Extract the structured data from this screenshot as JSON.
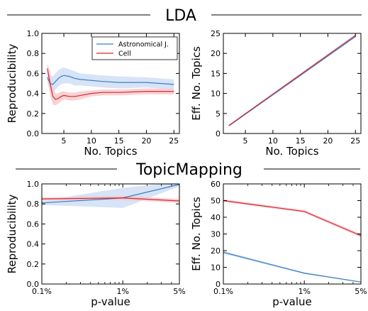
{
  "sections": [
    {
      "title": "LDA"
    },
    {
      "title": "TopicMapping"
    }
  ],
  "colors": {
    "blue": "#3a7fc1",
    "red": "#d62738",
    "blue_band": "#c9daf3",
    "red_band": "#f7c4c4"
  },
  "chart_data": [
    {
      "type": "line",
      "xlabel": "No. Topics",
      "ylabel": "Reproducibility",
      "xlim": [
        1,
        26
      ],
      "ylim": [
        0,
        1
      ],
      "xticks": [
        5,
        10,
        15,
        20,
        25
      ],
      "xtick_labels": [
        "5",
        "10",
        "15",
        "20",
        "25"
      ],
      "yticks": [
        0,
        0.2,
        0.4,
        0.6,
        0.8,
        1.0
      ],
      "ytick_labels": [
        "0.0",
        "0.2",
        "0.4",
        "0.6",
        "0.8",
        "1.0"
      ],
      "legend": "top-right",
      "series": [
        {
          "name": "Astronomical J.",
          "color": "blue",
          "x": [
            2,
            2.5,
            3,
            3.5,
            4,
            4.5,
            5,
            6,
            7,
            8,
            10,
            12,
            15,
            20,
            25
          ],
          "y": [
            0.56,
            0.5,
            0.49,
            0.52,
            0.55,
            0.57,
            0.58,
            0.57,
            0.55,
            0.54,
            0.53,
            0.52,
            0.51,
            0.51,
            0.49
          ],
          "band": [
            0.05,
            0.08,
            0.08,
            0.08,
            0.08,
            0.08,
            0.08,
            0.07,
            0.07,
            0.06,
            0.06,
            0.06,
            0.06,
            0.05,
            0.05
          ]
        },
        {
          "name": "Cell",
          "color": "red",
          "x": [
            2,
            2.5,
            3,
            3.5,
            4,
            4.5,
            5,
            6,
            7,
            8,
            10,
            12,
            15,
            20,
            25
          ],
          "y": [
            0.65,
            0.5,
            0.37,
            0.34,
            0.35,
            0.37,
            0.38,
            0.37,
            0.37,
            0.38,
            0.4,
            0.41,
            0.41,
            0.42,
            0.42
          ],
          "band": [
            0.05,
            0.12,
            0.08,
            0.06,
            0.05,
            0.05,
            0.04,
            0.04,
            0.04,
            0.04,
            0.03,
            0.03,
            0.03,
            0.03,
            0.03
          ]
        }
      ]
    },
    {
      "type": "line",
      "xlabel": "No. Topics",
      "ylabel": "Eff. No. Topics",
      "xlim": [
        1,
        26
      ],
      "ylim": [
        0,
        25
      ],
      "xticks": [
        5,
        10,
        15,
        20,
        25
      ],
      "xtick_labels": [
        "5",
        "10",
        "15",
        "20",
        "25"
      ],
      "yticks": [
        0,
        5,
        10,
        15,
        20,
        25
      ],
      "ytick_labels": [
        "0",
        "5",
        "10",
        "15",
        "20",
        "25"
      ],
      "series": [
        {
          "name": "Astronomical J.",
          "color": "blue",
          "x": [
            2,
            25
          ],
          "y": [
            1.9,
            24.2
          ],
          "band": [
            0.2,
            0.2
          ]
        },
        {
          "name": "Cell",
          "color": "red",
          "x": [
            2,
            25
          ],
          "y": [
            2.0,
            24.5
          ],
          "band": [
            0.2,
            0.2
          ]
        }
      ]
    },
    {
      "type": "line",
      "xscale": "log",
      "xlabel": "p-value",
      "ylabel": "Reproducibility",
      "xlim": [
        0.1,
        5
      ],
      "ylim": [
        0,
        1
      ],
      "xticks": [
        0.1,
        1,
        5
      ],
      "xtick_labels": [
        "0.1%",
        "1%",
        "5%"
      ],
      "yticks": [
        0,
        0.2,
        0.4,
        0.6,
        0.8,
        1.0
      ],
      "ytick_labels": [
        "0.0",
        "0.2",
        "0.4",
        "0.6",
        "0.8",
        "1.0"
      ],
      "series": [
        {
          "name": "Astronomical J.",
          "color": "blue",
          "x": [
            0.1,
            1,
            5
          ],
          "y": [
            0.81,
            0.86,
            0.995
          ],
          "band": [
            0.02,
            0.1,
            0.02
          ]
        },
        {
          "name": "Cell",
          "color": "red",
          "x": [
            0.1,
            1,
            5
          ],
          "y": [
            0.85,
            0.86,
            0.83
          ],
          "band": [
            0.015,
            0.02,
            0.02
          ]
        }
      ]
    },
    {
      "type": "line",
      "xscale": "log",
      "xlabel": "p-value",
      "ylabel": "Eff. No. Topics",
      "xlim": [
        0.1,
        5
      ],
      "ylim": [
        0,
        60
      ],
      "xticks": [
        0.1,
        1,
        5
      ],
      "xtick_labels": [
        "0.1%",
        "1%",
        "5%"
      ],
      "yticks": [
        0,
        10,
        20,
        30,
        40,
        50,
        60
      ],
      "ytick_labels": [
        "0",
        "10",
        "20",
        "30",
        "40",
        "50",
        "60"
      ],
      "series": [
        {
          "name": "Astronomical J.",
          "color": "blue",
          "x": [
            0.1,
            1,
            5
          ],
          "y": [
            19,
            6.5,
            1.2
          ],
          "band": [
            0.8,
            0.5,
            0.3
          ]
        },
        {
          "name": "Cell",
          "color": "red",
          "x": [
            0.1,
            1,
            5
          ],
          "y": [
            50,
            43.5,
            29
          ],
          "band": [
            0.8,
            0.8,
            1.0
          ]
        }
      ]
    }
  ]
}
